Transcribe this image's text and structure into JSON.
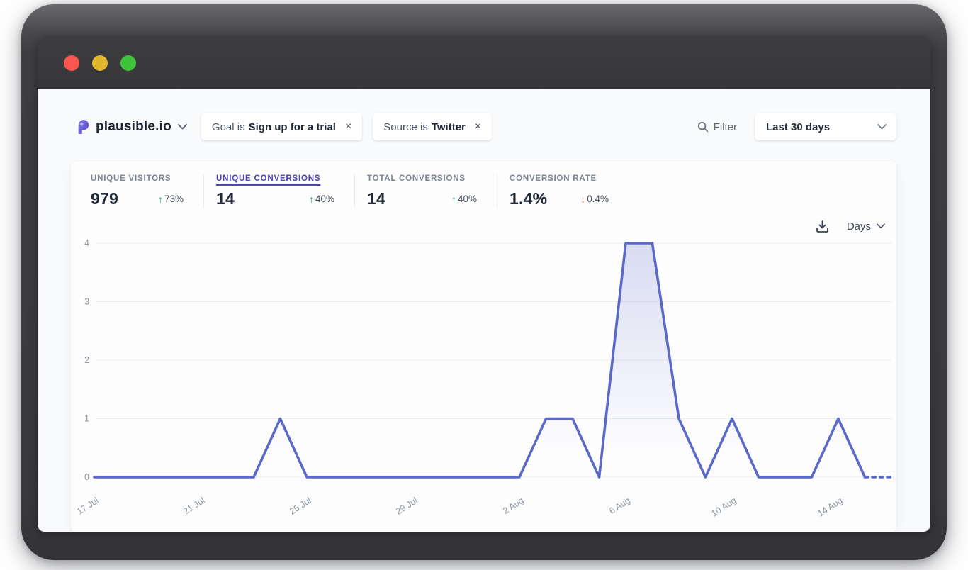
{
  "window": {
    "traffic_lights": [
      "close",
      "minimize",
      "zoom"
    ]
  },
  "header": {
    "site": {
      "name": "plausible.io"
    },
    "filter_pills": [
      {
        "prefix": "Goal is",
        "value": "Sign up for a trial",
        "close": "×"
      },
      {
        "prefix": "Source is",
        "value": "Twitter",
        "close": "×"
      }
    ],
    "filter_button": {
      "label": "Filter"
    },
    "date_range": {
      "selected": "Last 30 days"
    }
  },
  "stats": [
    {
      "label": "UNIQUE VISITORS",
      "value": "979",
      "change": "73%",
      "direction": "up",
      "active": false
    },
    {
      "label": "UNIQUE CONVERSIONS",
      "value": "14",
      "change": "40%",
      "direction": "up",
      "active": true
    },
    {
      "label": "TOTAL CONVERSIONS",
      "value": "14",
      "change": "40%",
      "direction": "up",
      "active": false
    },
    {
      "label": "CONVERSION RATE",
      "value": "1.4%",
      "change": "0.4%",
      "direction": "down",
      "active": false
    }
  ],
  "trend_glyphs": {
    "up": "↑",
    "down": "↓"
  },
  "chart_toolbar": {
    "interval": "Days"
  },
  "chart_data": {
    "type": "line",
    "title": "Unique conversions per day",
    "x": [
      "17 Jul",
      "18 Jul",
      "19 Jul",
      "20 Jul",
      "21 Jul",
      "22 Jul",
      "23 Jul",
      "24 Jul",
      "25 Jul",
      "26 Jul",
      "27 Jul",
      "28 Jul",
      "29 Jul",
      "30 Jul",
      "31 Jul",
      "1 Aug",
      "2 Aug",
      "3 Aug",
      "4 Aug",
      "5 Aug",
      "6 Aug",
      "7 Aug",
      "8 Aug",
      "9 Aug",
      "10 Aug",
      "11 Aug",
      "12 Aug",
      "13 Aug",
      "14 Aug",
      "15 Aug",
      "16 Aug"
    ],
    "values": [
      0,
      0,
      0,
      0,
      0,
      0,
      0,
      1,
      0,
      0,
      0,
      0,
      0,
      0,
      0,
      0,
      0,
      1,
      1,
      0,
      4,
      4,
      1,
      0,
      1,
      0,
      0,
      0,
      1,
      0,
      0
    ],
    "x_tick_labels": [
      "17 Jul",
      "21 Jul",
      "25 Jul",
      "29 Jul",
      "2 Aug",
      "6 Aug",
      "10 Aug",
      "14 Aug"
    ],
    "x_tick_every": 4,
    "yticks": [
      0,
      1,
      2,
      3,
      4
    ],
    "ylim": [
      0,
      4
    ],
    "grid": true,
    "legend_position": "none",
    "dashed_last_segments": 1,
    "line_color": "#5b69c8",
    "fill_color_top": "rgba(101,116,205,0.24)",
    "fill_color_bottom": "rgba(101,116,205,0)",
    "grid_color": "#e9ecf0",
    "tick_color": "#8d97a4"
  },
  "colors": {
    "accent_indigo": "#4d43c3",
    "positive_green": "#12b275",
    "negative_red": "#ef6a60",
    "page_bg": "#f8fafc",
    "card_bg": "#fdfdfe"
  }
}
